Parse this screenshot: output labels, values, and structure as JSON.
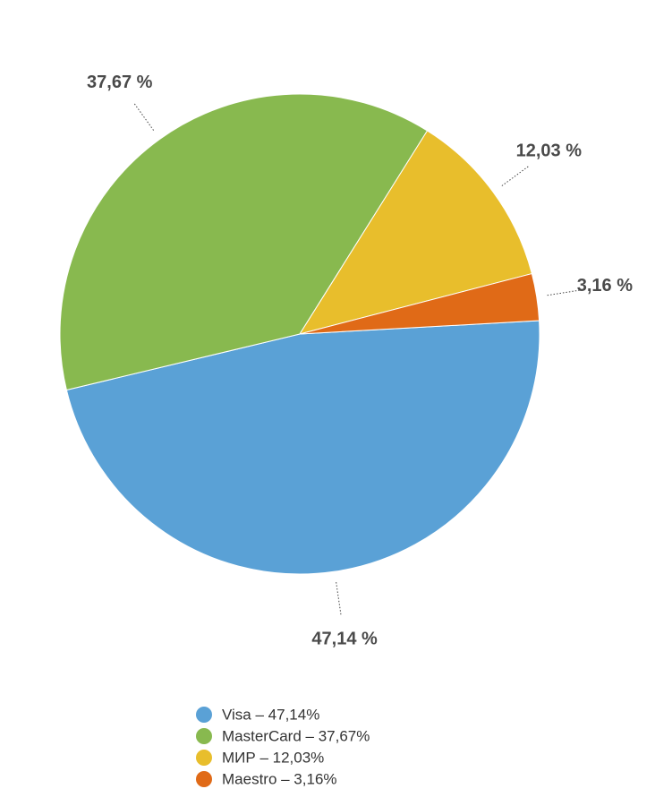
{
  "chart_data": {
    "type": "pie",
    "categories": [
      "Visa – 47,14%",
      "MasterCard – 37,67%",
      "МИР – 12,03%",
      "Maestro – 3,16%"
    ],
    "values": [
      47.14,
      37.67,
      12.03,
      3.16
    ],
    "value_labels": [
      "47,14 %",
      "37,67 %",
      "12,03 %",
      "3,16 %"
    ],
    "colors": [
      "#5aa1d6",
      "#88b94f",
      "#e8be2c",
      "#e06a17"
    ]
  }
}
